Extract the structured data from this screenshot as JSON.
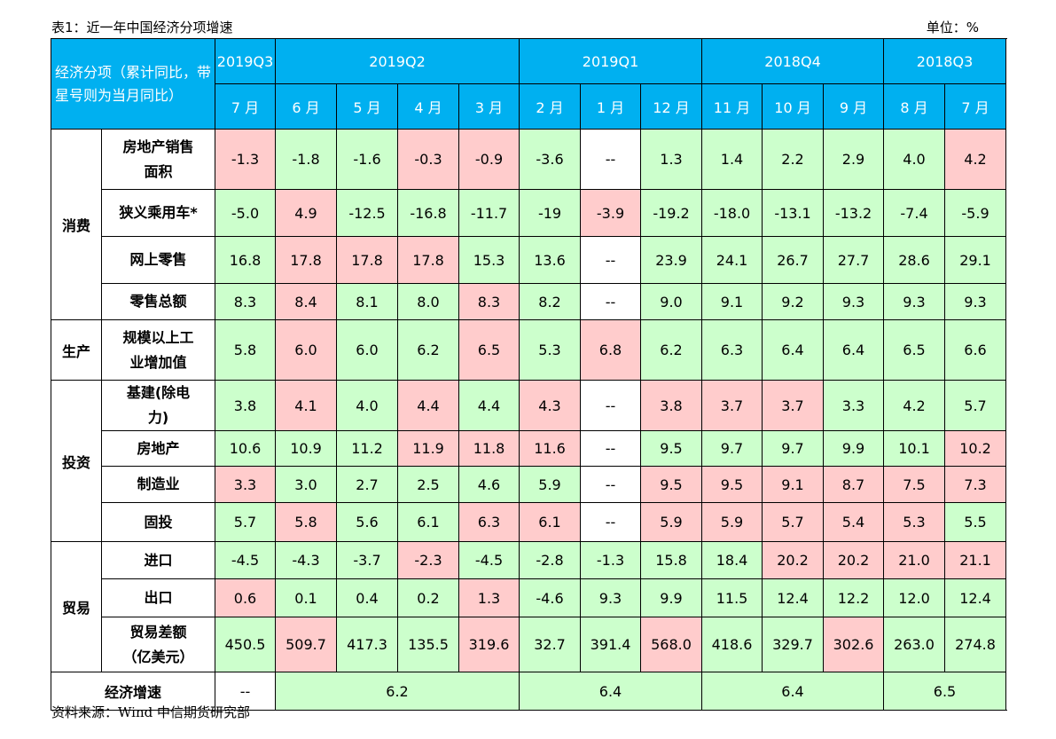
{
  "caption": "表1：近一年中国经济分项增速",
  "unit": "单位：%",
  "source": "资料来源：Wind  中信期货研究部",
  "header": {
    "corner": "经济分项（累计同比，带星号则为当月同比）",
    "quarters": [
      "2019Q3",
      "2019Q2",
      "2019Q1",
      "2018Q4",
      "2018Q3"
    ],
    "months": [
      "7 月",
      "6 月",
      "5 月",
      "4 月",
      "3 月",
      "2 月",
      "1 月",
      "12 月",
      "11 月",
      "10 月",
      "9 月",
      "8 月",
      "7 月"
    ]
  },
  "groups": [
    {
      "name": "消费",
      "rows": [
        {
          "label": "房地产销售面积",
          "values": [
            "-1.3",
            "-1.8",
            "-1.6",
            "-0.3",
            "-0.9",
            "-3.6",
            "--",
            "1.3",
            "1.4",
            "2.2",
            "2.9",
            "4.0",
            "4.2"
          ],
          "colors": [
            "r",
            "g",
            "g",
            "r",
            "r",
            "g",
            "w",
            "g",
            "g",
            "g",
            "g",
            "g",
            "r"
          ]
        },
        {
          "label": "狭义乘用车*",
          "values": [
            "-5.0",
            "4.9",
            "-12.5",
            "-16.8",
            "-11.7",
            "-19",
            "-3.9",
            "-19.2",
            "-18.0",
            "-13.1",
            "-13.2",
            "-7.4",
            "-5.9"
          ],
          "colors": [
            "g",
            "r",
            "g",
            "g",
            "g",
            "g",
            "r",
            "g",
            "g",
            "g",
            "g",
            "g",
            "g"
          ]
        },
        {
          "label": "网上零售",
          "values": [
            "16.8",
            "17.8",
            "17.8",
            "17.8",
            "15.3",
            "13.6",
            "--",
            "23.9",
            "24.1",
            "26.7",
            "27.7",
            "28.6",
            "29.1"
          ],
          "colors": [
            "g",
            "r",
            "r",
            "r",
            "g",
            "g",
            "w",
            "g",
            "g",
            "g",
            "g",
            "g",
            "g"
          ]
        },
        {
          "label": "零售总额",
          "values": [
            "8.3",
            "8.4",
            "8.1",
            "8.0",
            "8.3",
            "8.2",
            "--",
            "9.0",
            "9.1",
            "9.2",
            "9.3",
            "9.3",
            "9.3"
          ],
          "colors": [
            "g",
            "r",
            "g",
            "g",
            "r",
            "g",
            "w",
            "g",
            "g",
            "g",
            "g",
            "g",
            "g"
          ]
        }
      ]
    },
    {
      "name": "生产",
      "rows": [
        {
          "label": "规模以上工业增加值",
          "values": [
            "5.8",
            "6.0",
            "6.0",
            "6.2",
            "6.5",
            "5.3",
            "6.8",
            "6.2",
            "6.3",
            "6.4",
            "6.4",
            "6.5",
            "6.6"
          ],
          "colors": [
            "g",
            "r",
            "g",
            "g",
            "r",
            "g",
            "r",
            "g",
            "g",
            "g",
            "g",
            "g",
            "g"
          ]
        }
      ]
    },
    {
      "name": "投资",
      "rows": [
        {
          "label": "基建(除电力)",
          "values": [
            "3.8",
            "4.1",
            "4.0",
            "4.4",
            "4.4",
            "4.3",
            "--",
            "3.8",
            "3.7",
            "3.7",
            "3.3",
            "4.2",
            "5.7"
          ],
          "colors": [
            "g",
            "r",
            "g",
            "r",
            "g",
            "r",
            "w",
            "r",
            "r",
            "r",
            "g",
            "g",
            "g"
          ]
        },
        {
          "label": "房地产",
          "values": [
            "10.6",
            "10.9",
            "11.2",
            "11.9",
            "11.8",
            "11.6",
            "--",
            "9.5",
            "9.7",
            "9.7",
            "9.9",
            "10.1",
            "10.2"
          ],
          "colors": [
            "g",
            "g",
            "g",
            "r",
            "r",
            "r",
            "w",
            "g",
            "g",
            "g",
            "g",
            "g",
            "r"
          ]
        },
        {
          "label": "制造业",
          "values": [
            "3.3",
            "3.0",
            "2.7",
            "2.5",
            "4.6",
            "5.9",
            "--",
            "9.5",
            "9.5",
            "9.1",
            "8.7",
            "7.5",
            "7.3"
          ],
          "colors": [
            "r",
            "g",
            "g",
            "g",
            "g",
            "g",
            "w",
            "r",
            "r",
            "r",
            "r",
            "r",
            "r"
          ]
        },
        {
          "label": "固投",
          "values": [
            "5.7",
            "5.8",
            "5.6",
            "6.1",
            "6.3",
            "6.1",
            "--",
            "5.9",
            "5.9",
            "5.7",
            "5.4",
            "5.3",
            "5.5"
          ],
          "colors": [
            "g",
            "r",
            "g",
            "g",
            "r",
            "r",
            "w",
            "r",
            "r",
            "r",
            "r",
            "r",
            "g"
          ]
        }
      ]
    },
    {
      "name": "贸易",
      "rows": [
        {
          "label": "进口",
          "values": [
            "-4.5",
            "-4.3",
            "-3.7",
            "-2.3",
            "-4.5",
            "-2.8",
            "-1.3",
            "15.8",
            "18.4",
            "20.2",
            "20.2",
            "21.0",
            "21.1"
          ],
          "colors": [
            "g",
            "g",
            "g",
            "r",
            "g",
            "g",
            "g",
            "g",
            "g",
            "r",
            "r",
            "r",
            "r"
          ]
        },
        {
          "label": "出口",
          "values": [
            "0.6",
            "0.1",
            "0.4",
            "0.2",
            "1.3",
            "-4.6",
            "9.3",
            "9.9",
            "11.5",
            "12.4",
            "12.2",
            "12.0",
            "12.4"
          ],
          "colors": [
            "r",
            "g",
            "g",
            "g",
            "r",
            "g",
            "g",
            "g",
            "g",
            "g",
            "g",
            "g",
            "g"
          ]
        },
        {
          "label": "贸易差额（亿美元）",
          "values": [
            "450.5",
            "509.7",
            "417.3",
            "135.5",
            "319.6",
            "32.7",
            "391.4",
            "568.0",
            "418.6",
            "329.7",
            "302.6",
            "263.0",
            "274.8"
          ],
          "colors": [
            "g",
            "r",
            "g",
            "g",
            "r",
            "g",
            "g",
            "r",
            "g",
            "g",
            "r",
            "g",
            "g"
          ]
        }
      ]
    }
  ],
  "gdp": {
    "label": "经济增速",
    "values": [
      "--",
      "6.2",
      "6.4",
      "6.4",
      "6.5"
    ]
  },
  "colors": {
    "header": "#00b0f0",
    "green": "#ccffcc",
    "red": "#ffcccc"
  }
}
